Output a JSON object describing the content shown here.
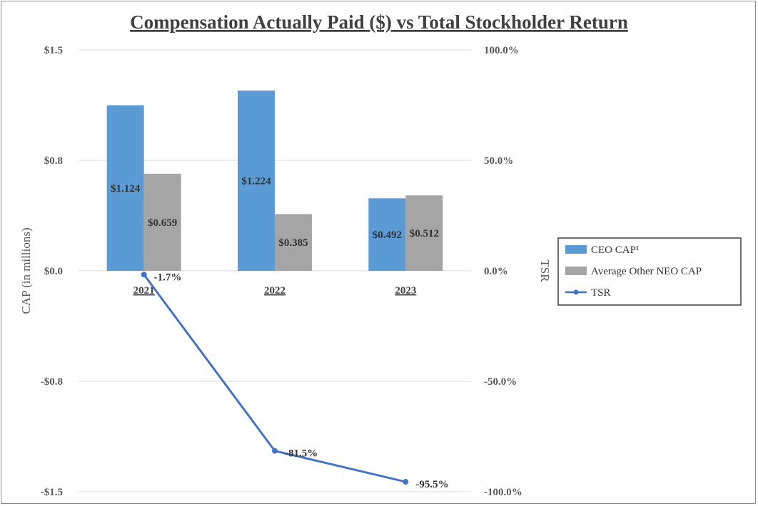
{
  "chart_data": {
    "type": "bar+line",
    "title": "Compensation Actually Paid ($) vs Total Stockholder Return",
    "categories": [
      "2021",
      "2022",
      "2023"
    ],
    "ylabel": "CAP (in millions)",
    "y2label": "TSR",
    "ylim": [
      -1.5,
      1.5
    ],
    "y2lim": [
      -100,
      100
    ],
    "yticks": [
      "$1.5",
      "$0.8",
      "$0.0",
      "-$0.8",
      "-$1.5"
    ],
    "ytick_values": [
      1.5,
      0.75,
      0,
      -0.75,
      -1.5
    ],
    "y2ticks": [
      "100.0%",
      "50.0%",
      "0.0%",
      "-50.0%",
      "-100.0%"
    ],
    "y2tick_values": [
      100,
      50,
      0,
      -50,
      -100
    ],
    "series": [
      {
        "name": "CEO CAP¹",
        "kind": "bar",
        "axis": "left",
        "color": "#5b9bd5",
        "values": [
          1.124,
          1.224,
          0.492
        ],
        "labels": [
          "$1.124",
          "$1.224",
          "$0.492"
        ]
      },
      {
        "name": "Average Other NEO CAP",
        "kind": "bar",
        "axis": "left",
        "color": "#a5a5a5",
        "values": [
          0.659,
          0.385,
          0.512
        ],
        "labels": [
          "$0.659",
          "$0.385",
          "$0.512"
        ]
      },
      {
        "name": "TSR",
        "kind": "line",
        "axis": "right",
        "color": "#4472c4",
        "values": [
          -1.7,
          -81.5,
          -95.5
        ],
        "labels": [
          "-1.7%",
          "-81.5%",
          "-95.5%"
        ]
      }
    ],
    "legend": "right"
  }
}
